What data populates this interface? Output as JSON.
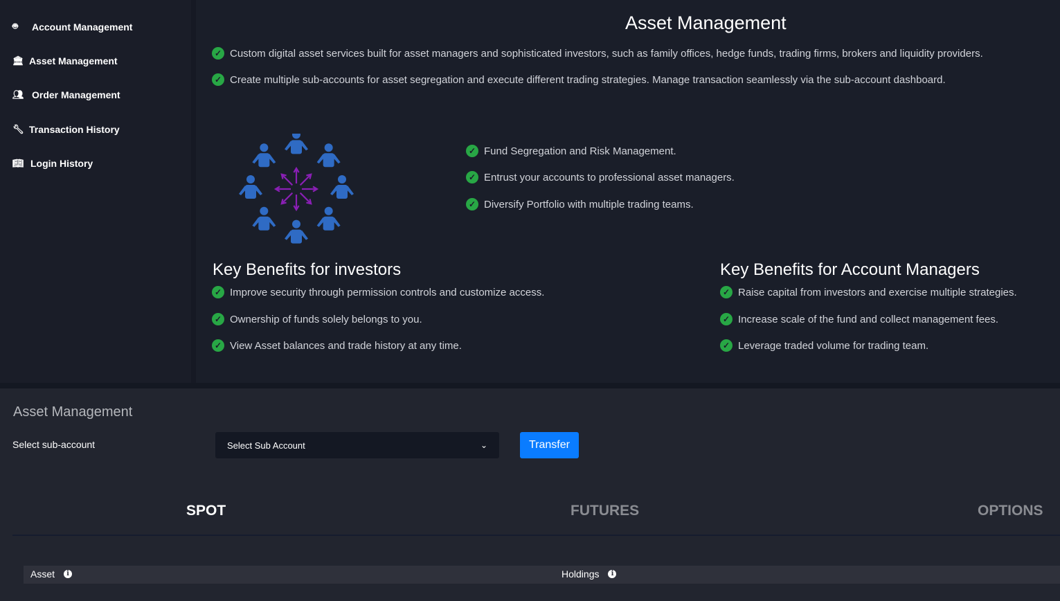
{
  "sidebar": {
    "items": [
      {
        "label": "Account Management",
        "icon": "robot-icon"
      },
      {
        "label": "Asset Management",
        "icon": "bank-icon"
      },
      {
        "label": "Order Management",
        "icon": "users-icon"
      },
      {
        "label": "Transaction History",
        "icon": "wrench-icon"
      },
      {
        "label": "Login History",
        "icon": "book-icon"
      }
    ]
  },
  "intro": {
    "title": "Asset Management",
    "points": [
      "Custom digital asset services built for asset managers and sophisticated investors, such as family offices, hedge funds, trading firms, brokers and liquidity providers.",
      "Create multiple sub-accounts for asset segregation and execute different trading strategies. Manage transaction seamlessly via the sub-account dashboard."
    ],
    "features": [
      "Fund Segregation and Risk Management.",
      "Entrust your accounts to professional asset managers.",
      "Diversify Portfolio with multiple trading teams."
    ]
  },
  "investors": {
    "title": "Key Benefits for investors",
    "points": [
      "Improve security through permission controls and customize access.",
      "Ownership of funds solely belongs to you.",
      "View Asset balances and trade history at any time."
    ]
  },
  "managers": {
    "title": "Key Benefits for Account Managers",
    "points": [
      "Raise capital from investors and exercise multiple strategies.",
      "Increase scale of the fund and collect management fees.",
      "Leverage traded volume for trading team."
    ]
  },
  "panel": {
    "title": "Asset Management",
    "select_label": "Select sub-account",
    "select_value": "Select Sub Account",
    "transfer": "Transfer",
    "tabs": [
      "SPOT",
      "FUTURES",
      "OPTIONS"
    ],
    "active_tab": "SPOT",
    "columns": [
      "Asset",
      "Holdings"
    ]
  },
  "colors": {
    "accent": "#0a7cff",
    "check": "#28a745",
    "illustration_people": "#2f6bc4",
    "illustration_arrows": "#8a1fb5"
  }
}
